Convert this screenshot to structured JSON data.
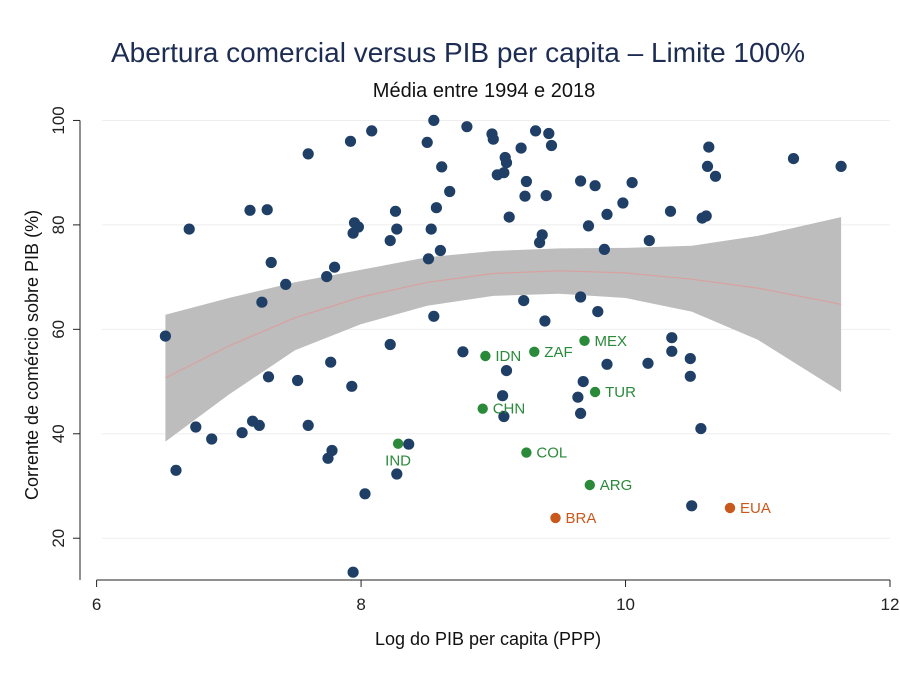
{
  "colors": {
    "background": "#ffffff",
    "points": "#1f3f66",
    "highlight_green": "#2a8a3a",
    "highlight_orange": "#c8581c",
    "ci_band": "#bdbdbd",
    "fit_line": "#d9a0a0",
    "grid": "#eeeeee",
    "title": "#1d2c52"
  },
  "chart_data": {
    "type": "scatter",
    "title": "Abertura comercial versus PIB per capita  – Limite 100%",
    "subtitle": "Média entre 1994 e 2018",
    "xlabel": "Log do PIB per capita (PPP)",
    "ylabel": "Corrente de comércio sobre PIB (%)",
    "xlim": [
      5.95,
      12.0
    ],
    "ylim": [
      12,
      102
    ],
    "x_ticks": [
      6,
      8,
      10,
      12
    ],
    "y_ticks": [
      20,
      40,
      60,
      80,
      100
    ],
    "grid": "horizontal",
    "series": [
      {
        "role": "other countries",
        "points": [
          [
            6.52,
            58.7
          ],
          [
            6.6,
            33.0
          ],
          [
            6.7,
            79.2
          ],
          [
            6.75,
            41.3
          ],
          [
            6.87,
            39.0
          ],
          [
            7.1,
            40.2
          ],
          [
            7.16,
            82.8
          ],
          [
            7.18,
            42.4
          ],
          [
            7.23,
            41.6
          ],
          [
            7.25,
            65.2
          ],
          [
            7.29,
            82.9
          ],
          [
            7.3,
            50.9
          ],
          [
            7.32,
            72.8
          ],
          [
            7.43,
            68.6
          ],
          [
            7.52,
            50.2
          ],
          [
            7.6,
            93.6
          ],
          [
            7.6,
            41.6
          ],
          [
            7.74,
            70.1
          ],
          [
            7.75,
            35.3
          ],
          [
            7.77,
            53.7
          ],
          [
            7.78,
            36.8
          ],
          [
            7.8,
            71.9
          ],
          [
            7.92,
            96.0
          ],
          [
            7.93,
            49.1
          ],
          [
            7.94,
            78.4
          ],
          [
            7.95,
            80.4
          ],
          [
            7.98,
            79.6
          ],
          [
            7.94,
            13.5
          ],
          [
            8.03,
            28.5
          ],
          [
            8.08,
            98.0
          ],
          [
            8.22,
            77.0
          ],
          [
            8.22,
            57.1
          ],
          [
            8.26,
            82.6
          ],
          [
            8.27,
            79.2
          ],
          [
            8.27,
            32.3
          ],
          [
            8.36,
            38.0
          ],
          [
            8.5,
            95.8
          ],
          [
            8.51,
            73.5
          ],
          [
            8.53,
            79.2
          ],
          [
            8.55,
            62.5
          ],
          [
            8.55,
            100.0
          ],
          [
            8.57,
            83.3
          ],
          [
            8.6,
            75.1
          ],
          [
            8.61,
            91.1
          ],
          [
            8.67,
            86.4
          ],
          [
            8.77,
            55.7
          ],
          [
            8.8,
            98.8
          ],
          [
            8.99,
            97.4
          ],
          [
            9.0,
            96.4
          ],
          [
            9.03,
            89.6
          ],
          [
            9.07,
            47.3
          ],
          [
            9.08,
            43.3
          ],
          [
            9.08,
            90.0
          ],
          [
            9.09,
            92.9
          ],
          [
            9.1,
            91.9
          ],
          [
            9.1,
            52.1
          ],
          [
            9.12,
            81.5
          ],
          [
            9.21,
            94.7
          ],
          [
            9.23,
            65.5
          ],
          [
            9.24,
            85.5
          ],
          [
            9.25,
            88.3
          ],
          [
            9.32,
            98.0
          ],
          [
            9.35,
            76.6
          ],
          [
            9.37,
            78.1
          ],
          [
            9.39,
            61.6
          ],
          [
            9.4,
            85.6
          ],
          [
            9.42,
            97.5
          ],
          [
            9.44,
            95.2
          ],
          [
            9.64,
            47.0
          ],
          [
            9.66,
            43.9
          ],
          [
            9.66,
            66.2
          ],
          [
            9.66,
            88.4
          ],
          [
            9.68,
            50.0
          ],
          [
            9.72,
            79.8
          ],
          [
            9.77,
            87.5
          ],
          [
            9.79,
            63.4
          ],
          [
            9.84,
            75.3
          ],
          [
            9.86,
            53.3
          ],
          [
            9.86,
            82.0
          ],
          [
            9.98,
            84.2
          ],
          [
            10.05,
            88.1
          ],
          [
            10.17,
            53.5
          ],
          [
            10.18,
            77.0
          ],
          [
            10.34,
            82.6
          ],
          [
            10.35,
            58.4
          ],
          [
            10.35,
            55.8
          ],
          [
            10.49,
            51.0
          ],
          [
            10.49,
            54.4
          ],
          [
            10.5,
            26.2
          ],
          [
            10.57,
            41.0
          ],
          [
            10.58,
            81.3
          ],
          [
            10.61,
            81.7
          ],
          [
            10.62,
            91.2
          ],
          [
            10.63,
            94.9
          ],
          [
            10.68,
            89.3
          ],
          [
            11.27,
            92.7
          ],
          [
            11.63,
            91.2
          ]
        ]
      }
    ],
    "highlighted": [
      {
        "code": "IDN",
        "x": 8.94,
        "y": 54.9,
        "group": "green"
      },
      {
        "code": "ZAF",
        "x": 9.31,
        "y": 55.7,
        "group": "green"
      },
      {
        "code": "MEX",
        "x": 9.69,
        "y": 57.8,
        "group": "green"
      },
      {
        "code": "TUR",
        "x": 9.77,
        "y": 48.0,
        "group": "green"
      },
      {
        "code": "CHN",
        "x": 8.92,
        "y": 44.8,
        "group": "green"
      },
      {
        "code": "IND",
        "x": 8.28,
        "y": 38.1,
        "group": "green"
      },
      {
        "code": "COL",
        "x": 9.25,
        "y": 36.4,
        "group": "green"
      },
      {
        "code": "ARG",
        "x": 9.73,
        "y": 30.2,
        "group": "green"
      },
      {
        "code": "BRA",
        "x": 9.47,
        "y": 23.9,
        "group": "orange"
      },
      {
        "code": "EUA",
        "x": 10.79,
        "y": 25.8,
        "group": "orange"
      }
    ],
    "fit": {
      "kind": "quadratic fit with 95% confidence band",
      "x": [
        6.52,
        7.0,
        7.5,
        8.0,
        8.5,
        9.0,
        9.5,
        10.0,
        10.5,
        11.0,
        11.63
      ],
      "y": [
        50.7,
        56.8,
        62.2,
        66.2,
        69.0,
        70.7,
        71.2,
        70.8,
        69.6,
        67.9,
        64.8
      ],
      "lower": [
        38.5,
        47.5,
        56.0,
        61.0,
        64.5,
        66.4,
        66.8,
        66.0,
        63.4,
        58.0,
        48.0
      ],
      "upper": [
        62.8,
        66.0,
        69.0,
        71.4,
        73.8,
        75.0,
        75.5,
        75.6,
        76.0,
        77.9,
        81.5
      ]
    }
  }
}
